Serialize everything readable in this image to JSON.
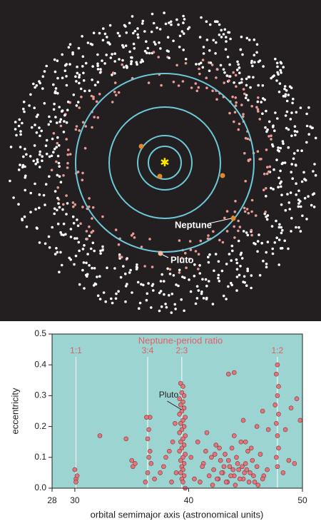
{
  "diagram": {
    "labels": [
      "Neptune",
      "Pluto"
    ]
  },
  "chart_data": {
    "type": "scatter",
    "title": "Neptune-period ratio",
    "x_label": "orbital semimajor axis (astronomical units)",
    "y_label": "eccentricity",
    "xlim": [
      28,
      50
    ],
    "xticks": [
      28,
      30,
      40,
      50
    ],
    "ylim": [
      0,
      0.5
    ],
    "yticks": [
      {
        "value": 0,
        "label": "0.0"
      },
      0.1,
      0.2,
      0.3,
      0.4,
      0.5
    ],
    "resonances": [
      {
        "label": "1:1",
        "x": 30.1
      },
      {
        "label": "3:4",
        "x": 36.4
      },
      {
        "label": "2:3",
        "x": 39.4
      },
      {
        "label": "1:2",
        "x": 47.8
      }
    ],
    "annotation": {
      "text": "Pluto",
      "x": 39.5,
      "y": 0.25
    },
    "series": [
      {
        "color": "#e3747b",
        "x": [
          30.1,
          30.0,
          30.2,
          30.1,
          32.2,
          34.5,
          35.0,
          35.1,
          35.3,
          36.2,
          36.4,
          36.5,
          36.6,
          36.4,
          36.5,
          36.6,
          36.3,
          36.7,
          37.0,
          37.5,
          37.8,
          38.0,
          38.3,
          38.5,
          38.6,
          38.9,
          38.8,
          39.3,
          39.5,
          39.4,
          39.6,
          39.2,
          39.5,
          39.3,
          39.6,
          39.4,
          39.2,
          39.7,
          39.5,
          39.3,
          39.6,
          39.4,
          39.2,
          39.7,
          39.5,
          39.3,
          39.6,
          39.4,
          39.2,
          39.7,
          39.5,
          39.3,
          39.6,
          39.4,
          39.5,
          39.3,
          39.6,
          39.4,
          39.5,
          39.7,
          41.0,
          41.3,
          41.5,
          41.8,
          42.0,
          42.2,
          42.4,
          42.6,
          42.8,
          43.0,
          43.2,
          43.4,
          43.6,
          43.8,
          44.0,
          44.2,
          44.4,
          44.6,
          44.8,
          45.0,
          45.2,
          45.4,
          45.6,
          45.8,
          46.0,
          46.3,
          46.6,
          46.9,
          42.1,
          42.5,
          42.9,
          43.3,
          43.7,
          44.1,
          44.5,
          44.9,
          45.3,
          45.7,
          46.1,
          46.5,
          43.1,
          43.5,
          43.9,
          44.3,
          44.7,
          45.1,
          42.3,
          42.7,
          44.0,
          45.5,
          40.5,
          40.8,
          41.2,
          41.6,
          40.2,
          43.5,
          44.0,
          45.0,
          46.0,
          46.5,
          47.0,
          44.8,
          47.8,
          47.7,
          47.9,
          47.8,
          47.6,
          47.9,
          47.7,
          47.8,
          47.9,
          47.7,
          47.8,
          48.5,
          49.0,
          49.5,
          49.8,
          49.3,
          48.8,
          48.3
        ],
        "values": [
          0.03,
          0.06,
          0.04,
          0.02,
          0.17,
          0.16,
          0.09,
          0.07,
          0.08,
          0.02,
          0.05,
          0.1,
          0.12,
          0.16,
          0.19,
          0.23,
          0.23,
          0.08,
          0.03,
          0.05,
          0.07,
          0.1,
          0.12,
          0.02,
          0.15,
          0.05,
          0.21,
          0.34,
          0.33,
          0.31,
          0.3,
          0.29,
          0.28,
          0.27,
          0.26,
          0.25,
          0.24,
          0.23,
          0.22,
          0.21,
          0.2,
          0.19,
          0.18,
          0.17,
          0.16,
          0.15,
          0.14,
          0.13,
          0.12,
          0.11,
          0.1,
          0.09,
          0.08,
          0.07,
          0.06,
          0.05,
          0.04,
          0.03,
          0.02,
          0.0,
          0.02,
          0.08,
          0.12,
          0.04,
          0.1,
          0.06,
          0.14,
          0.03,
          0.09,
          0.05,
          0.11,
          0.02,
          0.07,
          0.13,
          0.04,
          0.1,
          0.06,
          0.15,
          0.03,
          0.08,
          0.12,
          0.05,
          0.09,
          0.02,
          0.07,
          0.11,
          0.04,
          0.06,
          0.01,
          0.03,
          0.05,
          0.02,
          0.04,
          0.01,
          0.03,
          0.05,
          0.02,
          0.04,
          0.01,
          0.03,
          0.07,
          0.09,
          0.06,
          0.08,
          0.07,
          0.06,
          0.11,
          0.13,
          0.17,
          0.13,
          0.03,
          0.15,
          0.07,
          0.18,
          0.1,
          0.37,
          0.375,
          0.15,
          0.2,
          0.25,
          0.19,
          0.22,
          0.4,
          0.37,
          0.33,
          0.3,
          0.27,
          0.24,
          0.21,
          0.17,
          0.13,
          0.1,
          0.07,
          0.19,
          0.26,
          0.29,
          0.22,
          0.08,
          0.09,
          0.05
        ]
      }
    ]
  }
}
